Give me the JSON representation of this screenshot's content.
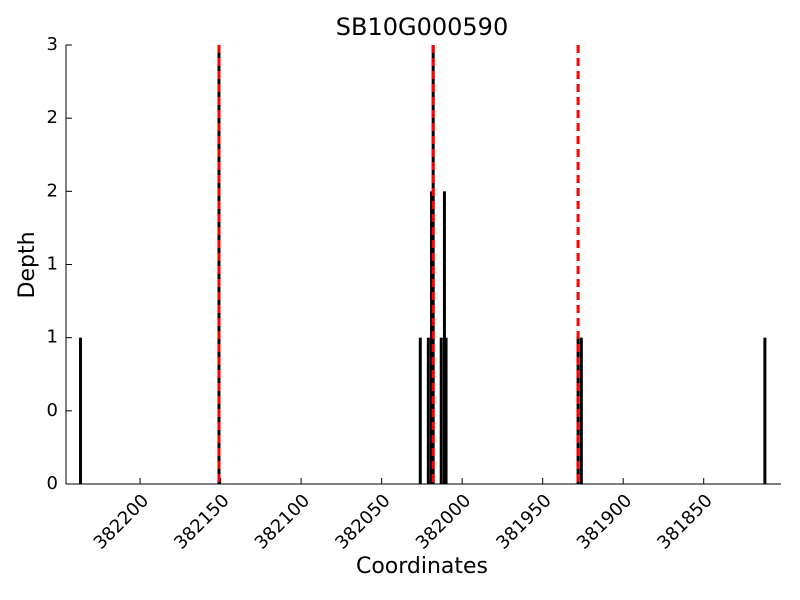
{
  "chart_data": {
    "type": "bar",
    "title": "SB10G000590",
    "xlabel": "Coordinates",
    "ylabel": "Depth",
    "x": [
      382237,
      382151,
      382026,
      382021,
      382019,
      382018,
      382013,
      382011,
      382010,
      381928,
      381926,
      381812
    ],
    "values": [
      1,
      3,
      1,
      1,
      2,
      3,
      1,
      2,
      1,
      1,
      1,
      1
    ],
    "color": "#000000",
    "vlines": [
      382151,
      382018,
      381928
    ],
    "vline_color": "#ff0000",
    "xlim": [
      382246,
      381802
    ],
    "xticks": [
      382200,
      382150,
      382100,
      382050,
      382000,
      381950,
      381900,
      381850
    ],
    "ylim": [
      0,
      3
    ],
    "yticks": [
      0,
      {
        "value": 0.5,
        "label": "0"
      },
      1,
      {
        "value": 1.5,
        "label": "1"
      },
      2,
      {
        "value": 2.5,
        "label": "2"
      },
      3
    ],
    "grid": false
  }
}
